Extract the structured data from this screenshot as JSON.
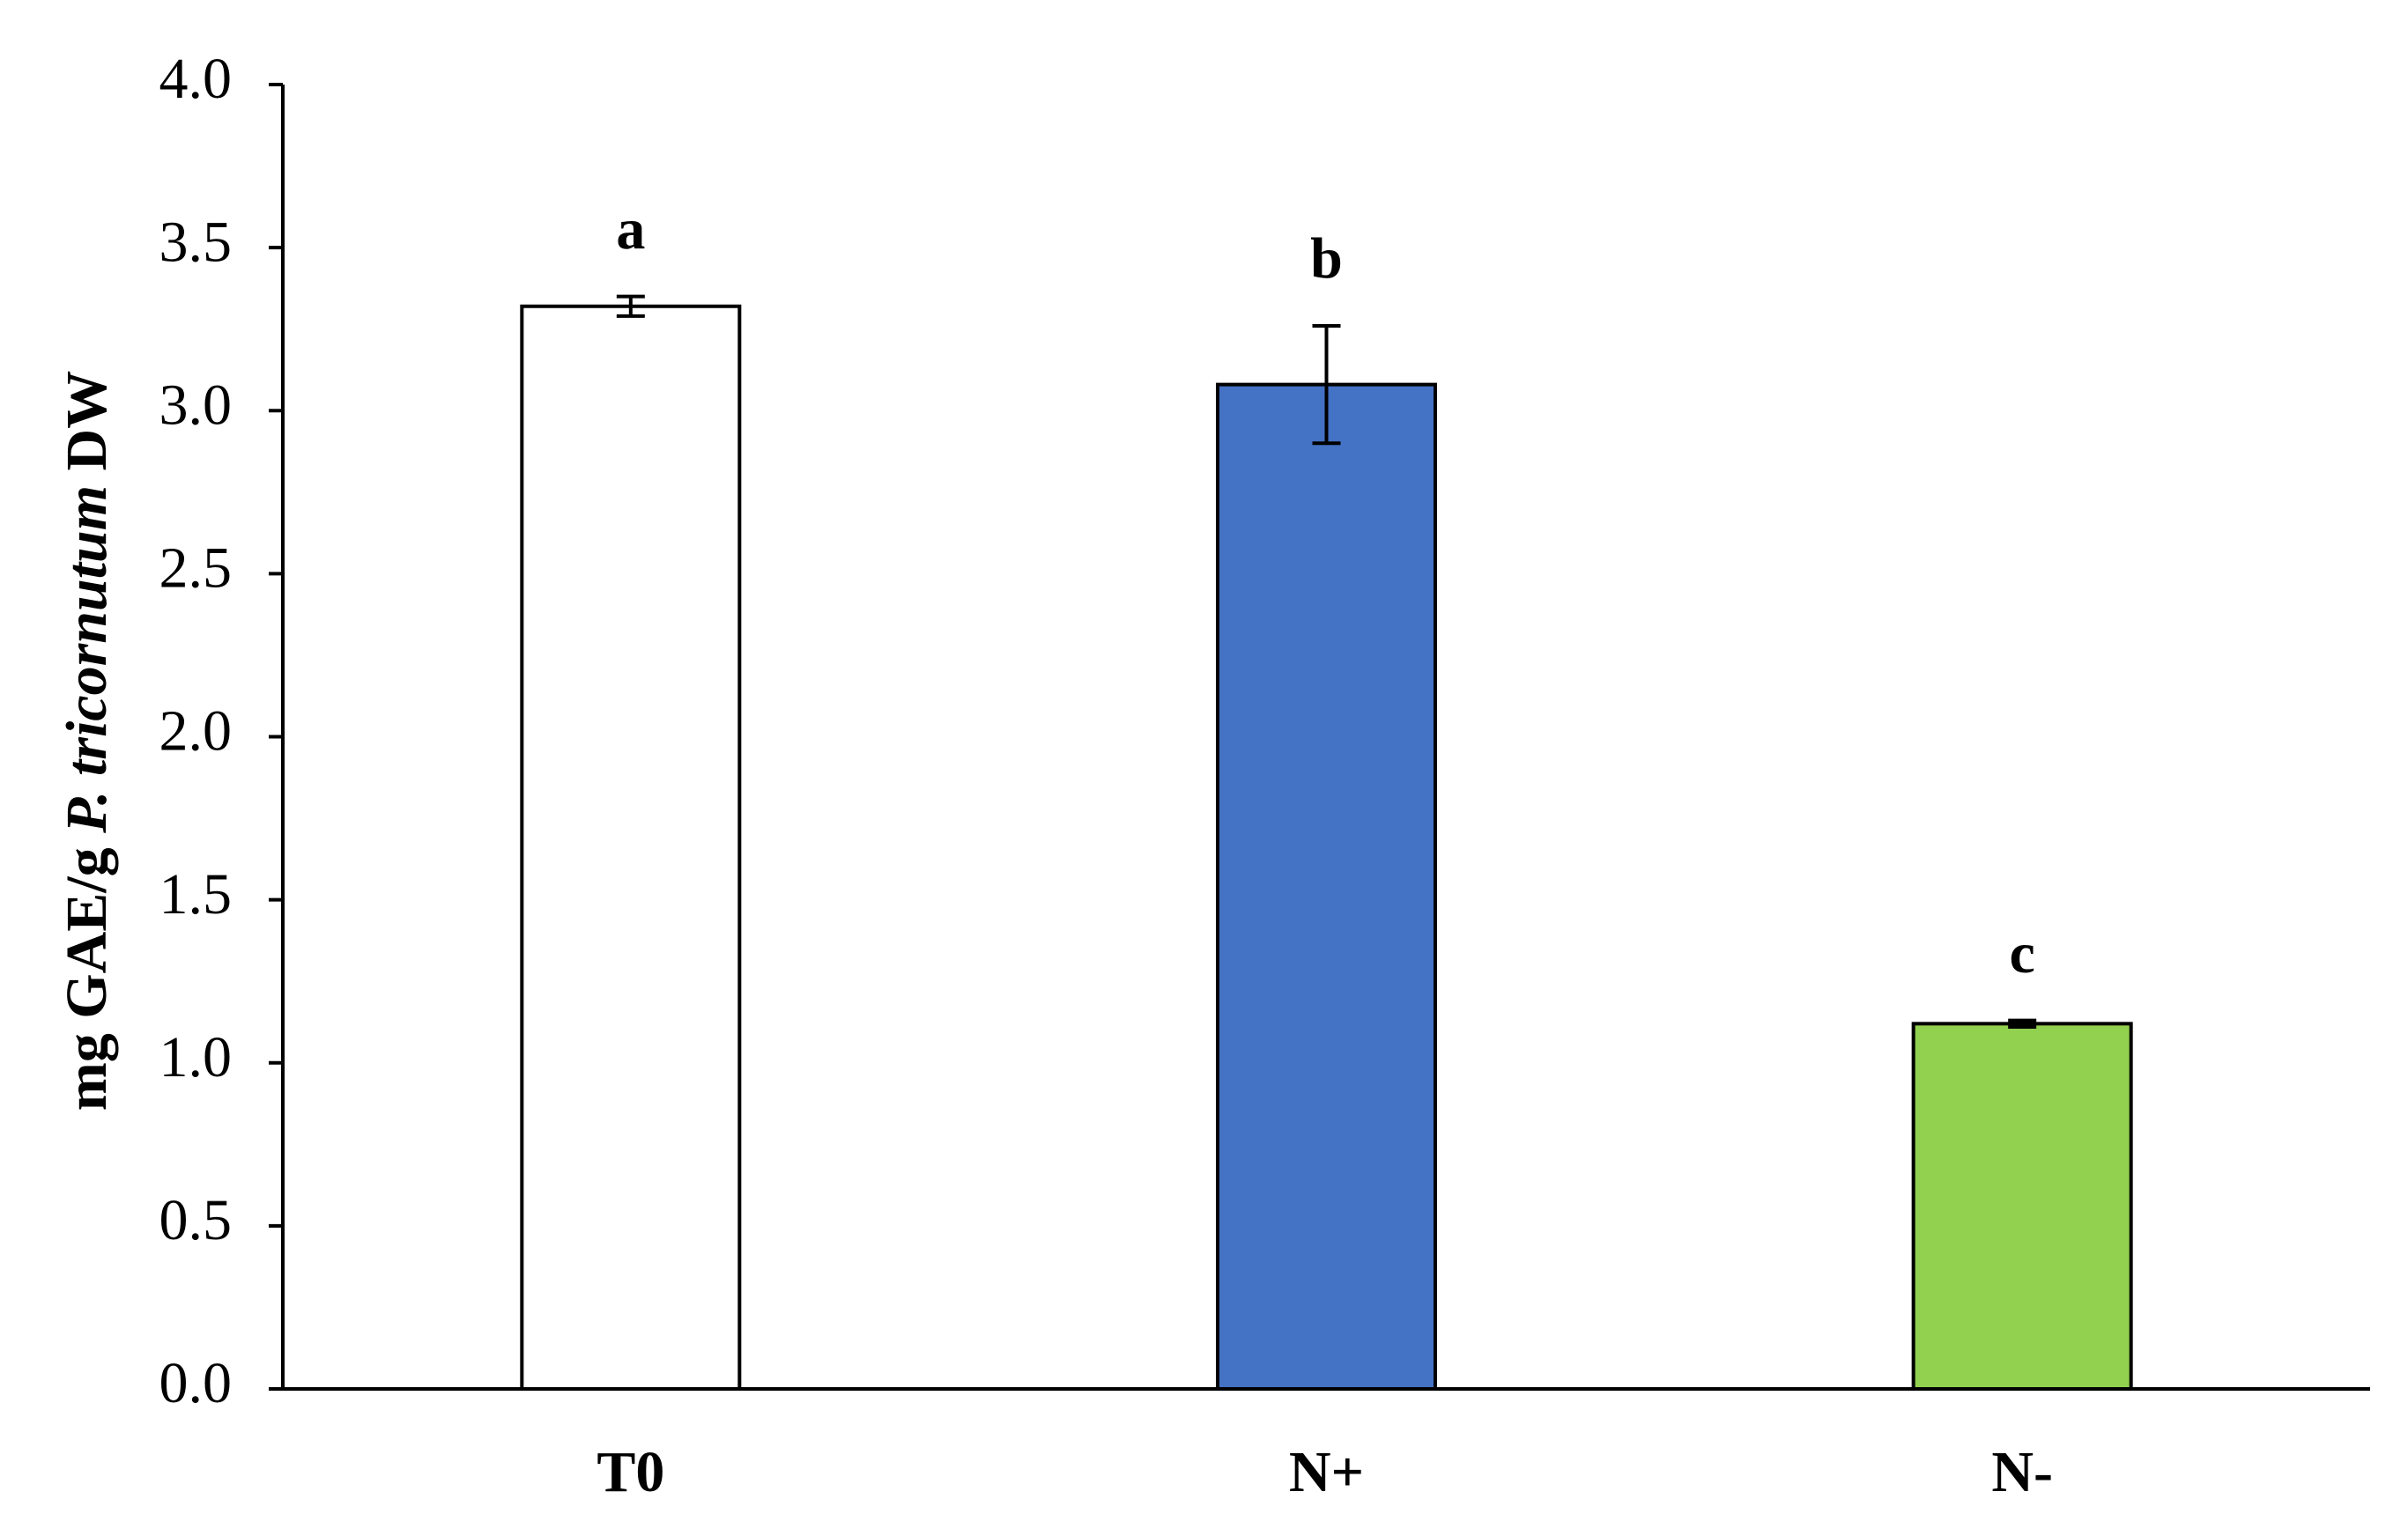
{
  "chart_data": {
    "type": "bar",
    "ylabel": [
      "mg GAE/g",
      "P. tricornutum",
      "DW"
    ],
    "categories": [
      "T0",
      "N+",
      "N-"
    ],
    "values": [
      3.32,
      3.08,
      1.12
    ],
    "errors": [
      0.03,
      0.18,
      0.01
    ],
    "annotations": [
      "a",
      "b",
      "c"
    ],
    "colors": [
      "#ffffff",
      "#4472c4",
      "#92d050"
    ],
    "ylim": [
      0,
      4
    ],
    "yticks": [
      {
        "value": 0,
        "label": "0.0"
      },
      0.5,
      {
        "value": 1,
        "label": "1.0"
      },
      1.5,
      {
        "value": 2,
        "label": "2.0"
      },
      2.5,
      {
        "value": 3,
        "label": "3.0"
      },
      3.5,
      {
        "value": 4,
        "label": "4.0"
      }
    ]
  }
}
